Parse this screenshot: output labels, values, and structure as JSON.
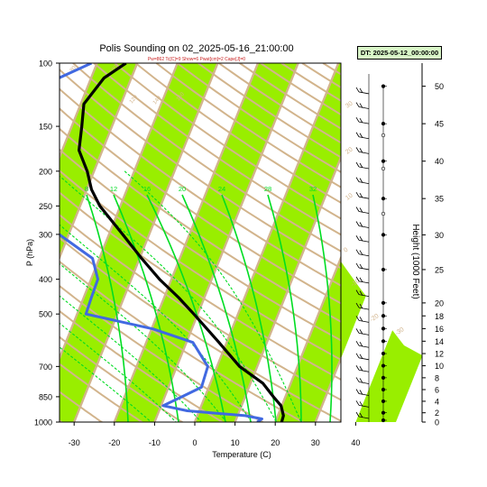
{
  "chart_data": {
    "type": "skew-t",
    "title": "Polis Sounding on 02_2025-05-16_21:00:00",
    "subtitle": "Pw=862 Tc[C]=9 Show=6 Pwat[cm]=2 Cape[J]=0",
    "datetime_box": "DT: 2025-05-12_00:00:00",
    "xlabel": "Temperature (C)",
    "ylabel": "P (hPa)",
    "right_ylabel": "Height (1000 Feet)",
    "x_ticks": [
      "-30",
      "-20",
      "-10",
      "0",
      "10",
      "20",
      "30",
      "40"
    ],
    "x_tick_values": [
      -30,
      -20,
      -10,
      0,
      10,
      20,
      30,
      40
    ],
    "pressure_ticks": [
      "100",
      "150",
      "200",
      "250",
      "300",
      "400",
      "500",
      "700",
      "850",
      "1000"
    ],
    "pressure_tick_values": [
      100,
      150,
      200,
      250,
      300,
      400,
      500,
      700,
      850,
      1000
    ],
    "height_ticks": [
      "50",
      "45",
      "40",
      "35",
      "30",
      "25",
      "20",
      "18",
      "16",
      "14",
      "12",
      "10",
      "8",
      "6",
      "4",
      "2",
      "0"
    ],
    "height_tick_values": [
      50,
      45,
      40,
      35,
      30,
      25,
      20,
      18,
      16,
      14,
      12,
      10,
      8,
      6,
      4,
      2,
      0
    ],
    "mixing_ratio_labels": [
      "8",
      "12",
      "16",
      "20",
      "24",
      "28",
      "32"
    ],
    "dry_adiabat_labels": [
      "80",
      "100",
      "120",
      "140",
      "160"
    ],
    "moist_adiabat_labels": [
      "30",
      "20",
      "10",
      "0",
      "-10",
      "-20",
      "-30"
    ],
    "isotherm_band_color": "#99ee00",
    "isotherm_line_color": "#d2b48c",
    "mixing_ratio_color": "#00dd22",
    "series": [
      {
        "key": "temperature",
        "color": "#000000",
        "points": [
          {
            "p": 100,
            "t": -52.8
          },
          {
            "p": 110,
            "t": -56.8
          },
          {
            "p": 130,
            "t": -59.2
          },
          {
            "p": 150,
            "t": -57.5
          },
          {
            "p": 175,
            "t": -55.8
          },
          {
            "p": 200,
            "t": -51.7
          },
          {
            "p": 225,
            "t": -48.8
          },
          {
            "p": 250,
            "t": -45.1
          },
          {
            "p": 300,
            "t": -36.6
          },
          {
            "p": 350,
            "t": -29.5
          },
          {
            "p": 400,
            "t": -23.0
          },
          {
            "p": 450,
            "t": -16.4
          },
          {
            "p": 500,
            "t": -11.0
          },
          {
            "p": 600,
            "t": -1.9
          },
          {
            "p": 700,
            "t": 5.6
          },
          {
            "p": 780,
            "t": 13.1
          },
          {
            "p": 850,
            "t": 17.0
          },
          {
            "p": 900,
            "t": 19.8
          },
          {
            "p": 960,
            "t": 21.4
          },
          {
            "p": 1000,
            "t": 21.6
          }
        ]
      },
      {
        "key": "dewpoint",
        "color": "#4169e1",
        "points": [
          {
            "p": 100,
            "t": -61.4
          },
          {
            "p": 120,
            "t": -74.0
          },
          {
            "p": 135,
            "t": -79.0
          },
          {
            "p": 150,
            "t": -77.3
          },
          {
            "p": 175,
            "t": -74.8
          },
          {
            "p": 200,
            "t": -69.6
          },
          {
            "p": 250,
            "t": -63.1
          },
          {
            "p": 300,
            "t": -52.4
          },
          {
            "p": 350,
            "t": -41.7
          },
          {
            "p": 400,
            "t": -38.3
          },
          {
            "p": 450,
            "t": -38.1
          },
          {
            "p": 500,
            "t": -37.8
          },
          {
            "p": 550,
            "t": -19.7
          },
          {
            "p": 600,
            "t": -8.4
          },
          {
            "p": 700,
            "t": -2.3
          },
          {
            "p": 800,
            "t": -1.8
          },
          {
            "p": 850,
            "t": -5.7
          },
          {
            "p": 900,
            "t": -9.5
          },
          {
            "p": 930,
            "t": -3.0
          },
          {
            "p": 960,
            "t": 11.9
          },
          {
            "p": 980,
            "t": 16.4
          },
          {
            "p": 1000,
            "t": 15.5
          }
        ]
      }
    ],
    "wind_heights_kft": [
      49,
      47,
      45,
      43,
      41,
      39,
      37,
      35,
      33,
      31,
      29,
      27,
      25,
      23,
      21,
      19,
      17,
      15,
      13,
      11,
      9,
      7,
      5,
      3,
      1
    ],
    "hodograph_heights_kft": [
      50,
      45,
      40,
      35,
      30,
      25,
      20,
      18,
      16,
      14,
      12,
      10,
      8,
      6,
      4,
      2,
      0
    ]
  }
}
